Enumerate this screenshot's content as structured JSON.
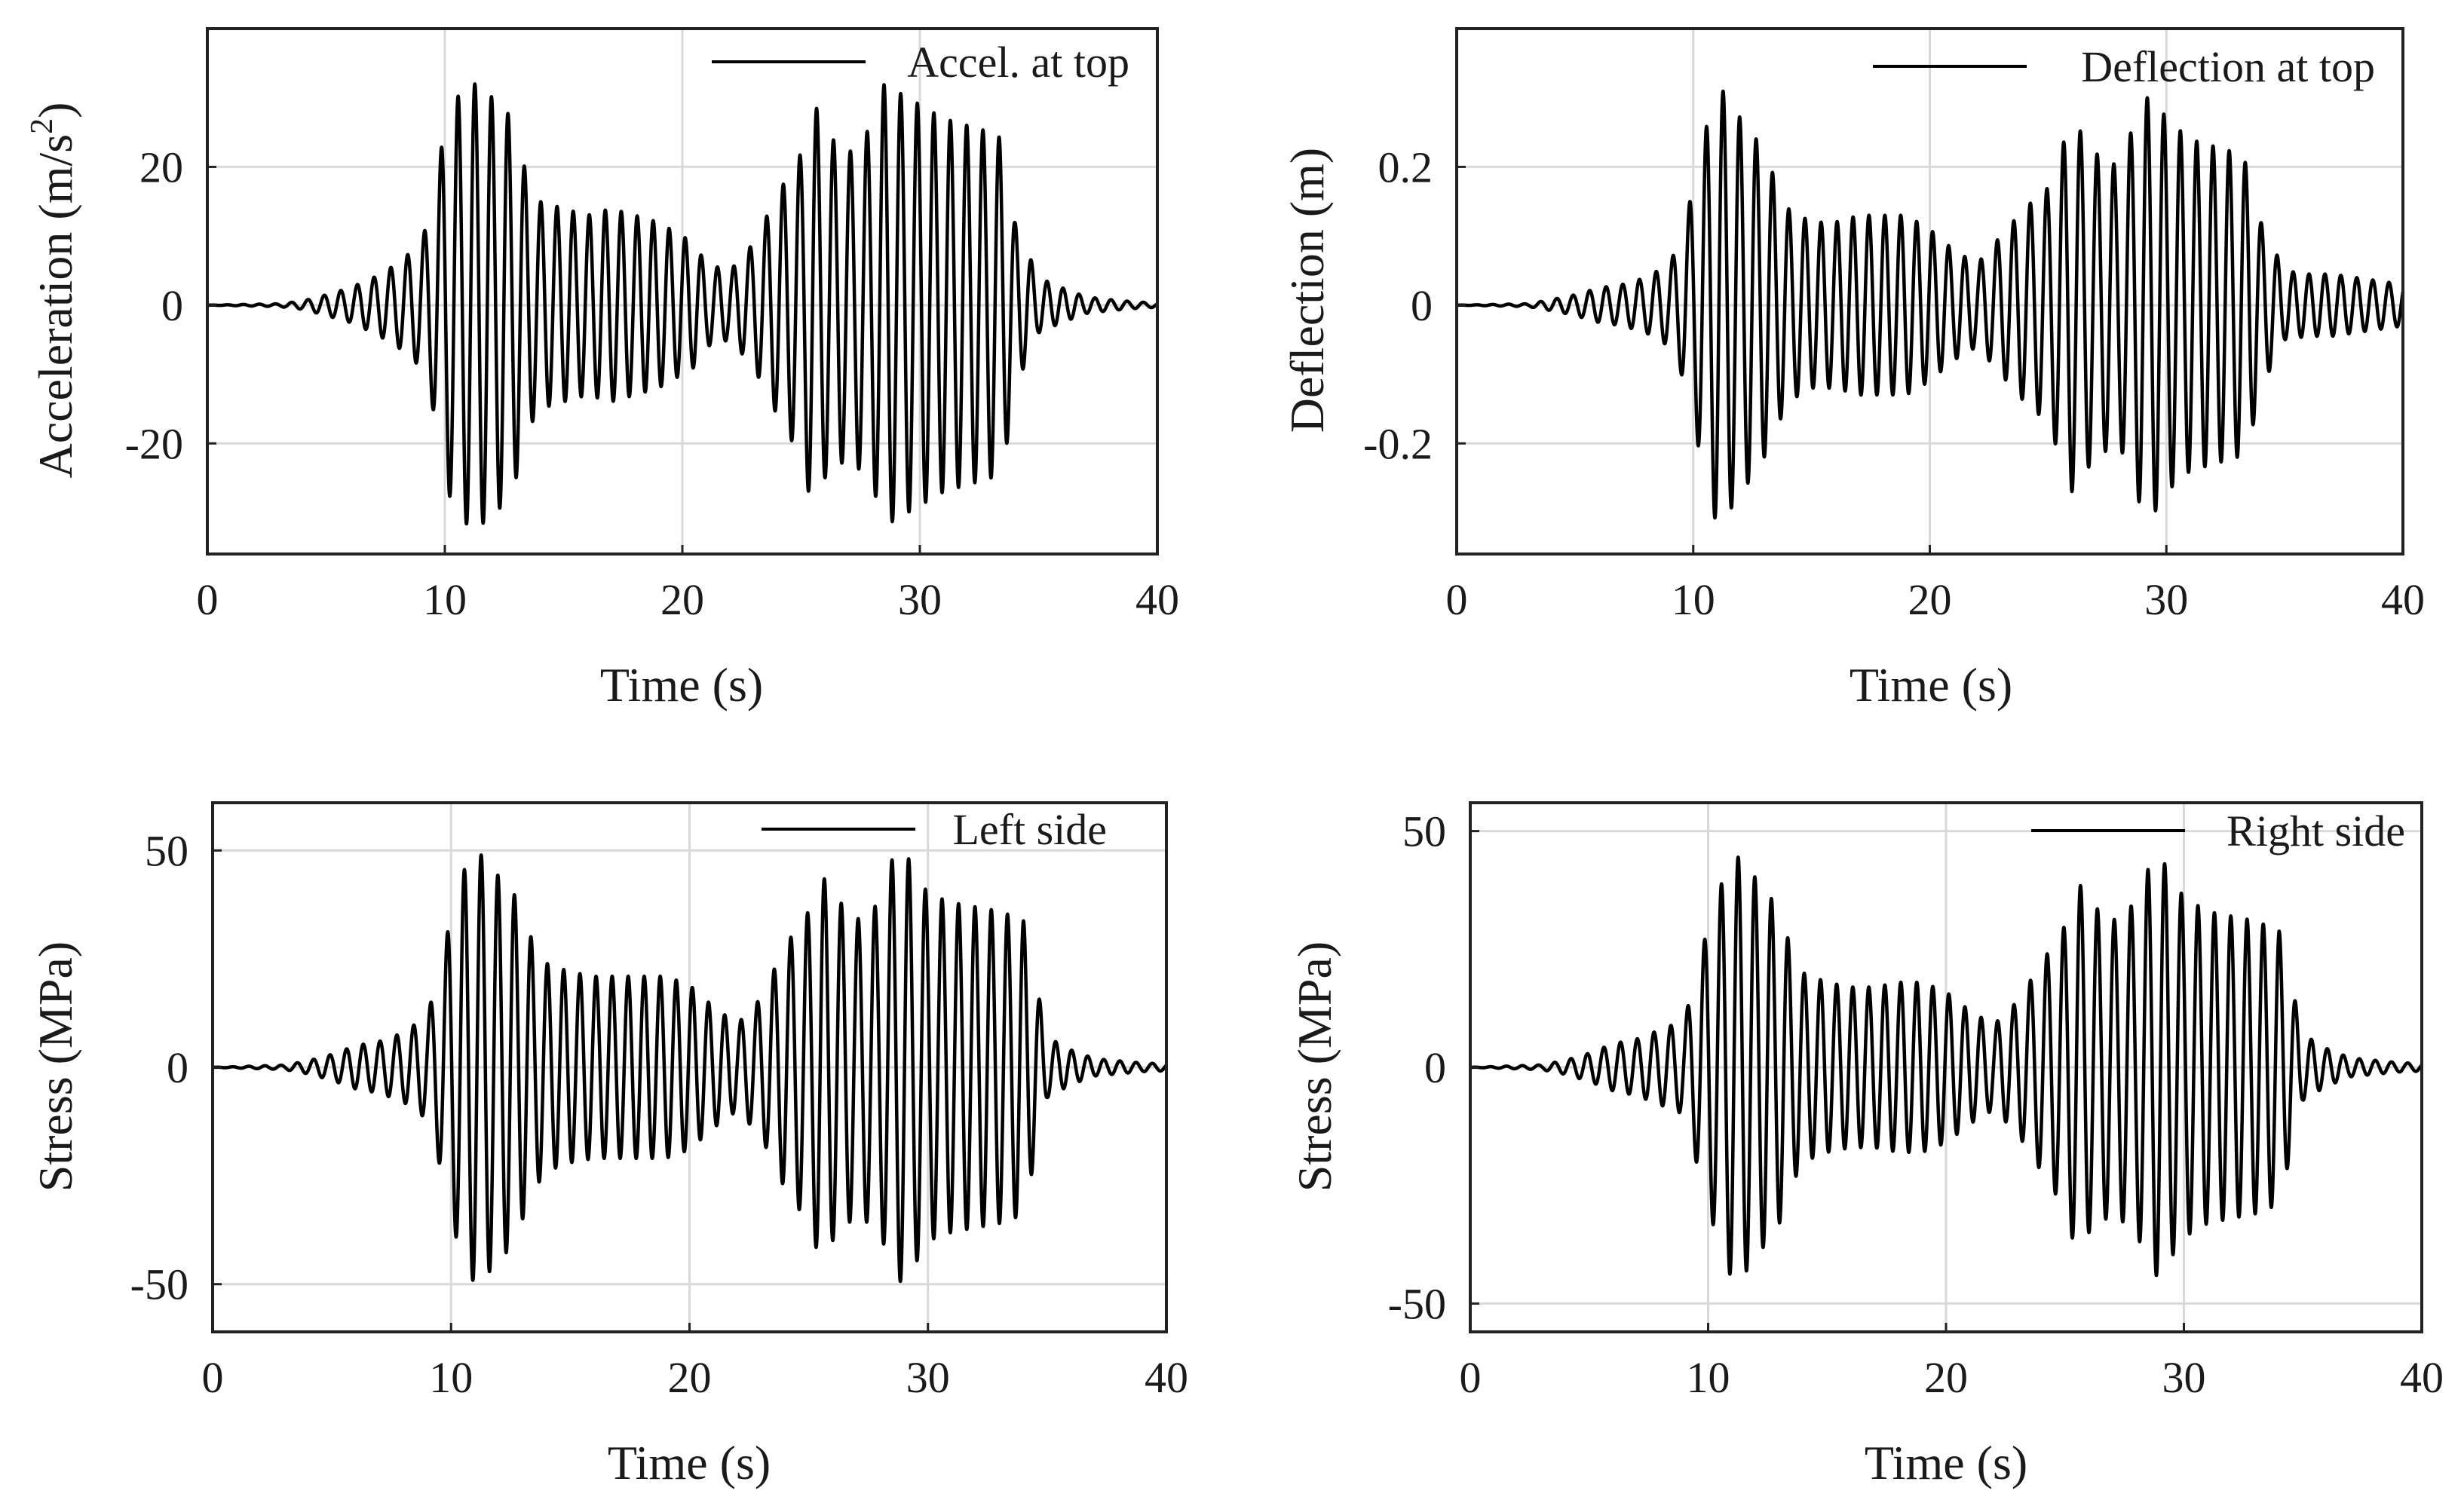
{
  "chart_data": [
    {
      "type": "line",
      "series": [
        {
          "name": "Accel. at top",
          "color": "#000000",
          "envelope": {
            "t": [
              0,
              3,
              4,
              5,
              6,
              7,
              8,
              9,
              9.5,
              10,
              10.5,
              11,
              11.5,
              12,
              12.5,
              13,
              13.5,
              14,
              15,
              16,
              17,
              18,
              19,
              20,
              20.5,
              21,
              22,
              23,
              24,
              25,
              25.5,
              26,
              27,
              28,
              28.5,
              29,
              30,
              31,
              32,
              33,
              33.5,
              34,
              35,
              36,
              37,
              38,
              39,
              40
            ],
            "amp": [
              0,
              0.2,
              0.6,
              1.5,
              2.5,
              4,
              6,
              9,
              15,
              26,
              30,
              32,
              32,
              30,
              29,
              25,
              18,
              15,
              14,
              13,
              14,
              13,
              12,
              10,
              9,
              6,
              5,
              9,
              16,
              22,
              30,
              25,
              22,
              26,
              32,
              31,
              29,
              27,
              26,
              25,
              24,
              12,
              4,
              2.5,
              1.2,
              0.8,
              0.5,
              0.3
            ]
          },
          "frequency_hz": 1.45
        }
      ],
      "xlabel": "Time (s)",
      "ylabel": "Acceleration (m/s",
      "ylabel_superscript": "2",
      "ylabel_suffix": ")",
      "xlim": [
        0,
        40
      ],
      "ylim": [
        -36,
        40
      ],
      "xticks": [
        0,
        10,
        20,
        30,
        40
      ],
      "yticks": [
        -20,
        0,
        20
      ],
      "grid": true,
      "legend_position": "top-right"
    },
    {
      "type": "line",
      "series": [
        {
          "name": "Deflection at top",
          "color": "#000000",
          "envelope": {
            "t": [
              0,
              3,
              4,
              5,
              6,
              7,
              8,
              9,
              9.5,
              10,
              10.5,
              11,
              11.5,
              12,
              12.5,
              13,
              13.5,
              14,
              15,
              16,
              17,
              18,
              19,
              20,
              21,
              22,
              23,
              24,
              25,
              26,
              27,
              28,
              28.5,
              29,
              29.5,
              30,
              31,
              32,
              33,
              33.5,
              34,
              35,
              36,
              37,
              38,
              39,
              40
            ],
            "amp": [
              0,
              0.002,
              0.008,
              0.015,
              0.025,
              0.03,
              0.04,
              0.06,
              0.1,
              0.17,
              0.25,
              0.32,
              0.3,
              0.27,
              0.25,
              0.22,
              0.18,
              0.14,
              0.12,
              0.12,
              0.13,
              0.13,
              0.13,
              0.11,
              0.08,
              0.06,
              0.1,
              0.14,
              0.17,
              0.27,
              0.22,
              0.2,
              0.25,
              0.3,
              0.3,
              0.27,
              0.24,
              0.23,
              0.22,
              0.2,
              0.12,
              0.05,
              0.045,
              0.045,
              0.04,
              0.035,
              0.03
            ]
          },
          "frequency_hz": 1.45
        }
      ],
      "xlabel": "Time (s)",
      "ylabel": "Deflection (m)",
      "xlim": [
        0,
        40
      ],
      "ylim": [
        -0.36,
        0.4
      ],
      "xticks": [
        0,
        10,
        20,
        30,
        40
      ],
      "yticks": [
        -0.2,
        0,
        0.2
      ],
      "grid": true,
      "legend_position": "top-right"
    },
    {
      "type": "line",
      "series": [
        {
          "name": "Left side",
          "color": "#000000",
          "envelope": {
            "t": [
              0,
              3,
              4,
              5,
              6,
              7,
              8,
              9,
              9.5,
              10,
              10.5,
              11,
              11.5,
              12,
              12.5,
              13,
              13.5,
              14,
              15,
              16,
              17,
              18,
              19,
              20,
              21,
              22,
              23,
              24,
              25,
              25.5,
              26,
              27,
              28,
              28.5,
              29,
              29.5,
              30,
              31,
              32,
              33,
              34,
              35,
              36,
              37,
              38,
              39,
              40
            ],
            "amp": [
              0,
              0.5,
              1.5,
              3,
              5,
              6,
              8,
              12,
              22,
              35,
              45,
              50,
              48,
              44,
              42,
              35,
              28,
              24,
              22,
              21,
              21,
              21,
              21,
              19,
              14,
              10,
              16,
              28,
              36,
              45,
              40,
              34,
              38,
              48,
              50,
              45,
              40,
              38,
              37,
              36,
              34,
              7,
              4,
              2,
              1.5,
              1,
              0.8
            ]
          },
          "frequency_hz": 1.45
        }
      ],
      "xlabel": "Time (s)",
      "ylabel": "Stress (MPa)",
      "xlim": [
        0,
        40
      ],
      "ylim": [
        -61,
        61
      ],
      "xticks": [
        0,
        10,
        20,
        30,
        40
      ],
      "yticks": [
        -50,
        0,
        50
      ],
      "grid": true,
      "legend_position": "top-right"
    },
    {
      "type": "line",
      "series": [
        {
          "name": "Right side",
          "color": "#000000",
          "envelope": {
            "t": [
              0,
              3,
              4,
              5,
              6,
              7,
              8,
              9,
              9.5,
              10,
              10.5,
              11,
              11.5,
              12,
              12.5,
              13,
              13.5,
              14,
              15,
              16,
              17,
              18,
              19,
              20,
              21,
              22,
              23,
              24,
              25,
              25.5,
              26,
              27,
              28,
              28.5,
              29,
              29.5,
              30,
              31,
              32,
              33,
              34,
              35,
              36,
              37,
              38,
              39,
              40
            ],
            "amp": [
              0,
              0.5,
              1.5,
              3,
              5,
              6,
              8,
              10,
              20,
              30,
              38,
              45,
              44,
              40,
              37,
              33,
              25,
              20,
              18,
              17,
              17,
              18,
              18,
              16,
              12,
              9,
              14,
              22,
              30,
              40,
              35,
              31,
              35,
              42,
              45,
              40,
              36,
              33,
              32,
              31,
              29,
              7,
              4,
              2,
              1.5,
              1,
              0.8
            ]
          },
          "frequency_hz": 1.45
        }
      ],
      "xlabel": "Time (s)",
      "ylabel": "Stress (MPa)",
      "xlim": [
        0,
        40
      ],
      "ylim": [
        -56,
        56
      ],
      "xticks": [
        0,
        10,
        20,
        30,
        40
      ],
      "yticks": [
        -50,
        0,
        50
      ],
      "grid": true,
      "legend_position": "top-right"
    }
  ]
}
